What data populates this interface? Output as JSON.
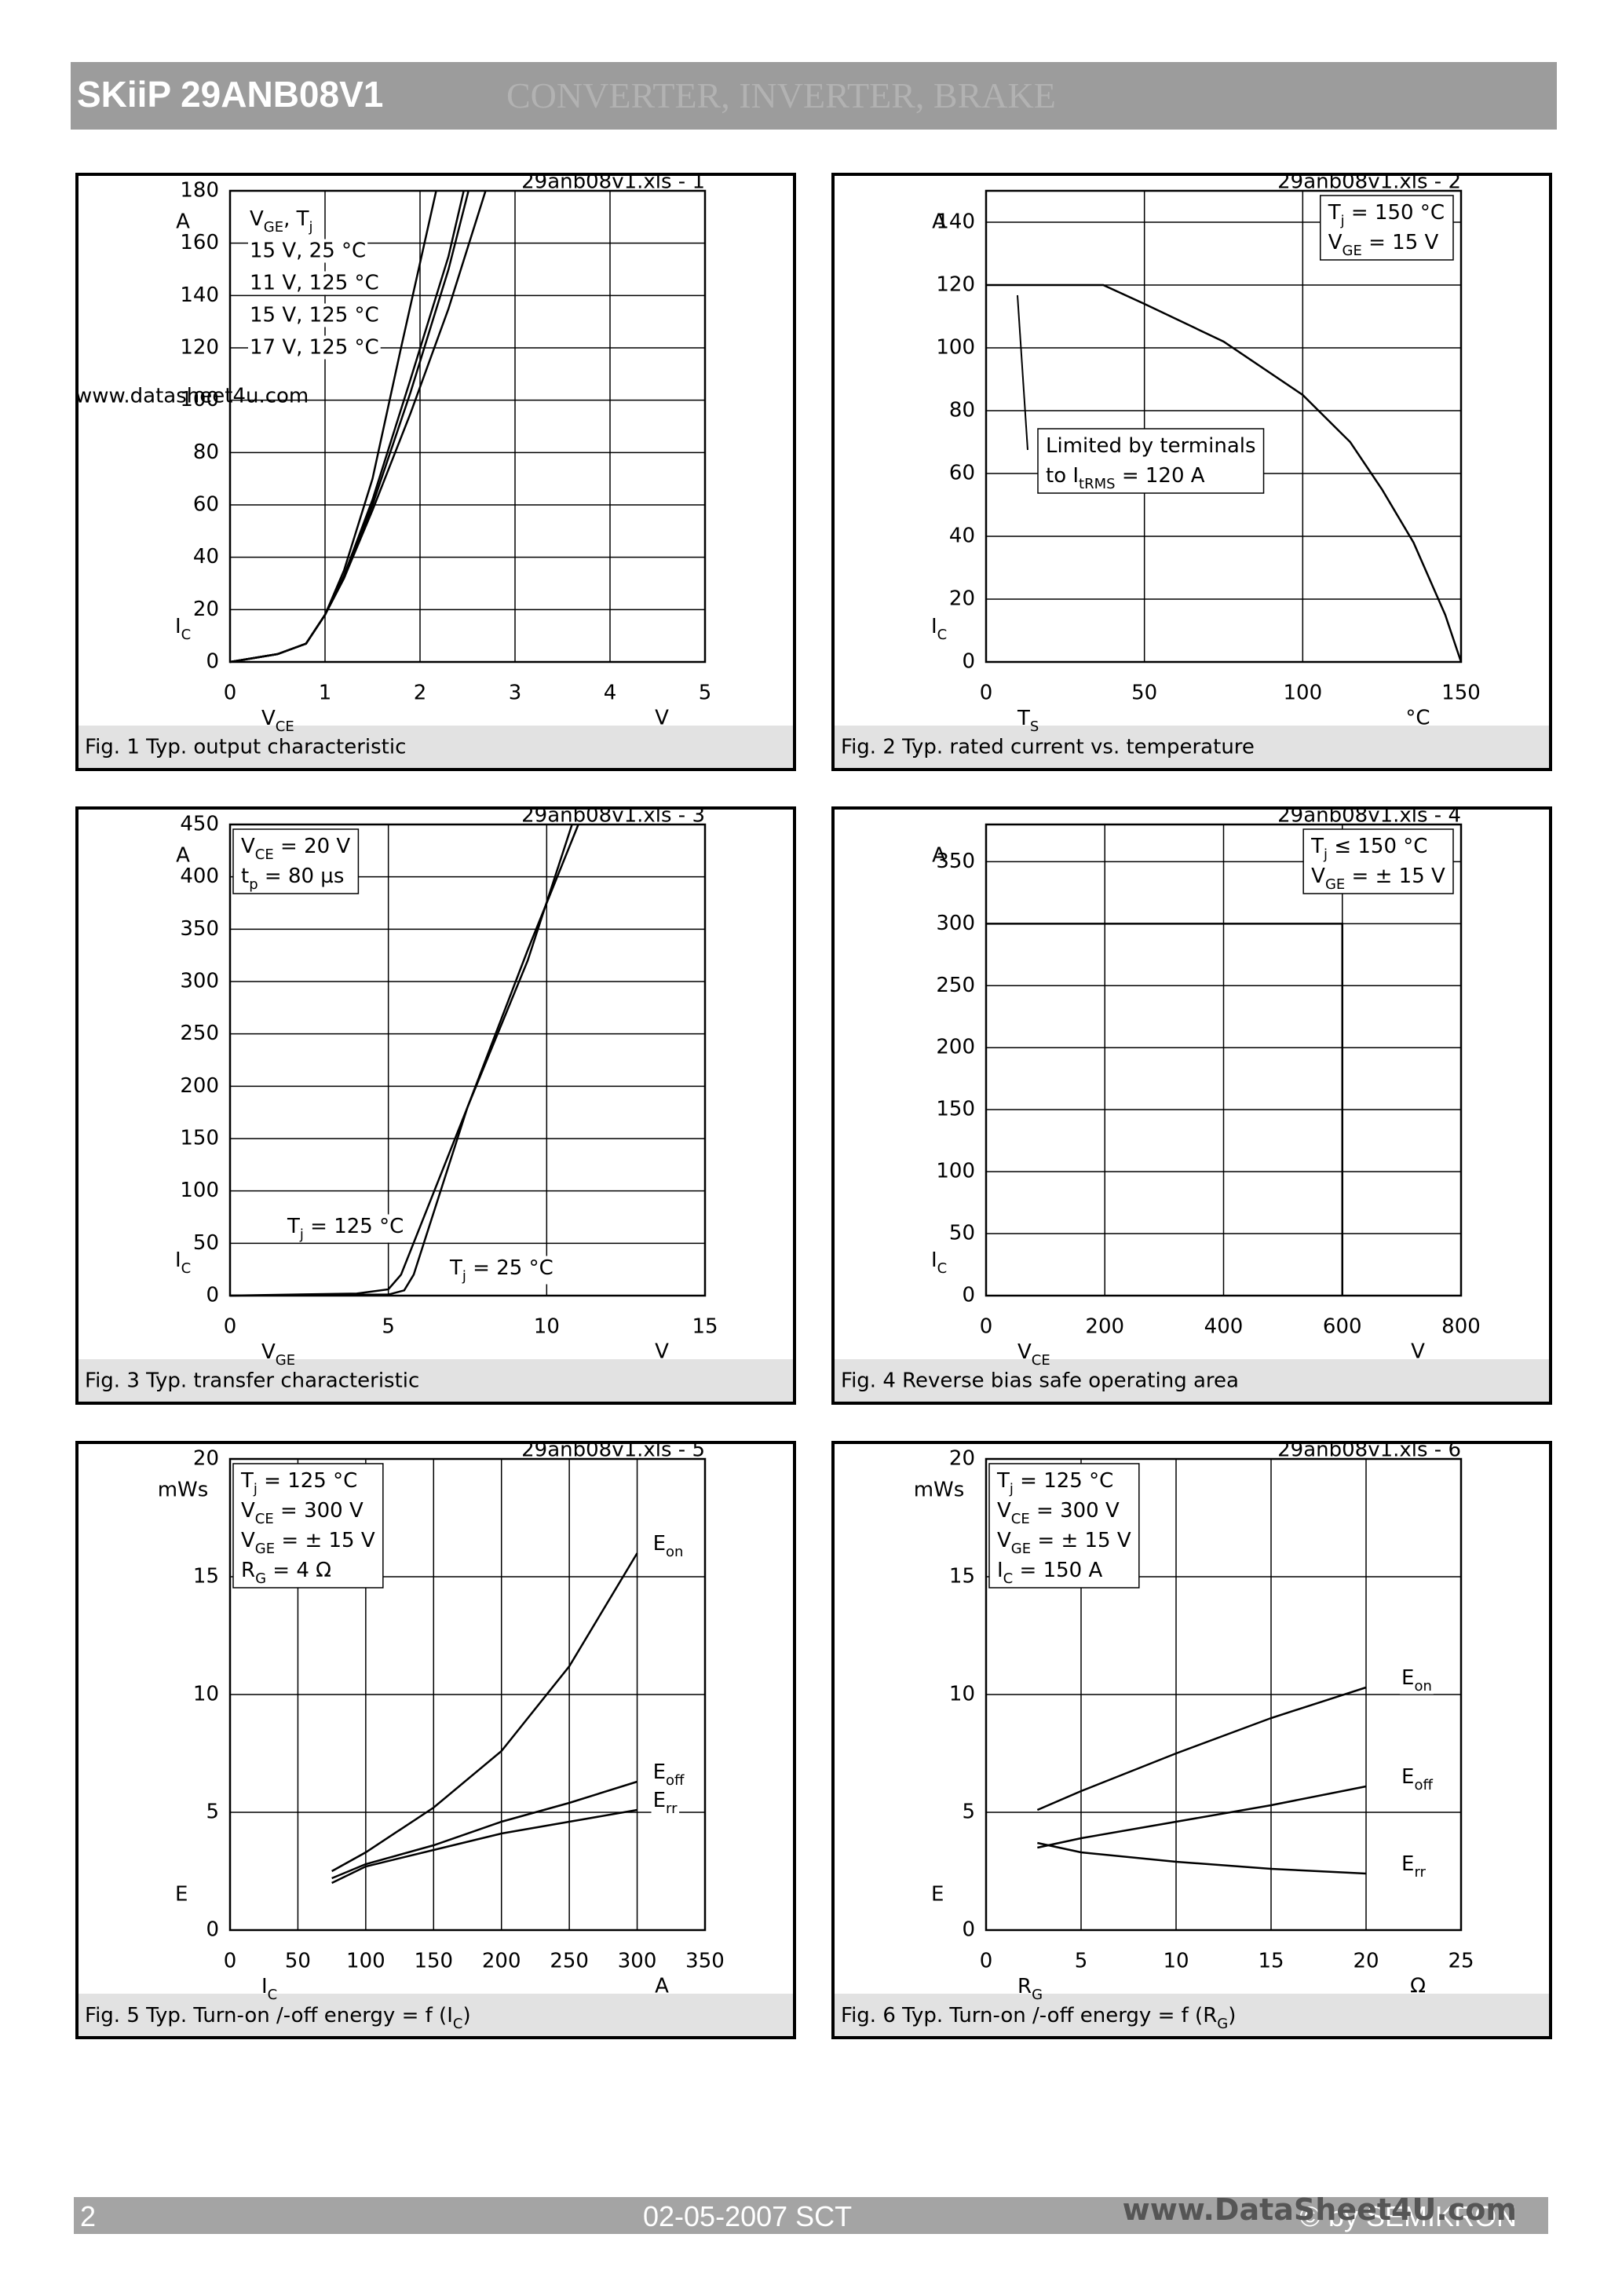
{
  "header": {
    "title": "SKiiP 29ANB08V1",
    "subtitle": "CONVERTER, INVERTER, BRAKE"
  },
  "footer": {
    "page": "2",
    "date": "02-05-2007  SCT",
    "copyright": "© by SEMIKRON",
    "watermark": "www.DataSheet4U.com"
  },
  "chart_data": [
    {
      "type": "line",
      "tag": "29anb08v1.xls - 1",
      "watermark": "www.datasheet4u.com",
      "caption": "Fig. 1 Typ. output characteristic",
      "xlabel": [
        "V",
        "CE"
      ],
      "xunit": "V",
      "ylabel": [
        "I",
        "C"
      ],
      "yunit": "A",
      "xlim": [
        0,
        5
      ],
      "xticks": [
        0,
        1,
        2,
        3,
        4,
        5
      ],
      "ylim": [
        0,
        180
      ],
      "yticks": [
        0,
        20,
        40,
        60,
        80,
        100,
        120,
        140,
        160,
        180
      ],
      "grid": true,
      "legend_title": [
        "V",
        "GE",
        ",   T",
        "j"
      ],
      "series": [
        {
          "name": "15 V,   25 °C",
          "color": "#000000",
          "x": [
            0,
            0.5,
            0.8,
            1,
            1.2,
            1.5,
            1.8,
            2.17
          ],
          "values": [
            0,
            3,
            7,
            18,
            35,
            70,
            120,
            180
          ]
        },
        {
          "name": "11 V, 125 °C",
          "color": "#000000",
          "x": [
            0,
            0.5,
            0.8,
            1,
            1.2,
            1.5,
            1.9,
            2.3,
            2.69
          ],
          "values": [
            0,
            3,
            7,
            18,
            32,
            58,
            95,
            135,
            180
          ]
        },
        {
          "name": "15 V, 125 °C",
          "color": "#000000",
          "x": [
            0,
            0.5,
            0.8,
            1,
            1.2,
            1.5,
            1.9,
            2.3,
            2.51
          ],
          "values": [
            0,
            3,
            7,
            18,
            32,
            60,
            103,
            150,
            180
          ]
        },
        {
          "name": "17 V, 125 °C",
          "color": "#000000",
          "x": [
            0,
            0.5,
            0.8,
            1,
            1.2,
            1.5,
            1.9,
            2.3,
            2.46
          ],
          "values": [
            0,
            3,
            7,
            18,
            33,
            62,
            108,
            155,
            180
          ]
        }
      ]
    },
    {
      "type": "line",
      "tag": "29anb08v1.xls - 2",
      "caption": "Fig. 2 Typ. rated current vs. temperature",
      "xlabel": [
        "T",
        "S"
      ],
      "xunit": "°C",
      "ylabel": [
        "I",
        "C"
      ],
      "yunit": "A",
      "xlim": [
        0,
        150
      ],
      "xticks": [
        0,
        50,
        100,
        150
      ],
      "ylim": [
        0,
        150
      ],
      "yticks": [
        0,
        20,
        40,
        60,
        80,
        100,
        120,
        140
      ],
      "grid": true,
      "box": [
        [
          "T",
          "j",
          "   = 150 °C"
        ],
        [
          "V",
          "GE",
          " = 15 V"
        ]
      ],
      "note": [
        [
          "Limited by terminals"
        ],
        [
          "to I",
          "tRMS",
          " = 120 A"
        ]
      ],
      "series": [
        {
          "color": "#000000",
          "x": [
            0,
            37,
            50,
            75,
            100,
            115,
            125,
            135,
            145,
            150
          ],
          "values": [
            120,
            120,
            114,
            102,
            85,
            70,
            55,
            38,
            15,
            0
          ]
        }
      ]
    },
    {
      "type": "line",
      "tag": "29anb08v1.xls - 3",
      "caption": "Fig. 3 Typ. transfer characteristic",
      "xlabel": [
        "V",
        "GE"
      ],
      "xunit": "V",
      "ylabel": [
        "I",
        "C"
      ],
      "yunit": "A",
      "xlim": [
        0,
        15
      ],
      "xticks": [
        0,
        5,
        10,
        15
      ],
      "ylim": [
        0,
        450
      ],
      "yticks": [
        0,
        50,
        100,
        150,
        200,
        250,
        300,
        350,
        400,
        450
      ],
      "grid": true,
      "box": [
        [
          "V",
          "CE",
          " = 20 V"
        ],
        [
          "t",
          "p",
          "     = 80 µs"
        ]
      ],
      "series": [
        {
          "name": [
            "T",
            "j",
            " = 125 °C"
          ],
          "color": "#000000",
          "x": [
            0,
            4,
            5,
            5.4,
            7.5,
            9.4,
            10.8
          ],
          "values": [
            0,
            2,
            6,
            20,
            180,
            320,
            450
          ]
        },
        {
          "name": [
            "T",
            "j",
            " = 25 °C"
          ],
          "color": "#000000",
          "x": [
            0,
            5,
            5.5,
            5.8,
            7.5,
            9.4,
            11.0
          ],
          "values": [
            0,
            1,
            5,
            20,
            180,
            330,
            450
          ]
        }
      ]
    },
    {
      "type": "line",
      "tag": "29anb08v1.xls - 4",
      "caption": "Fig. 4 Reverse bias safe operating area",
      "xlabel": [
        "V",
        "CE"
      ],
      "xunit": "V",
      "ylabel": [
        "I",
        "C"
      ],
      "yunit": "A",
      "xlim": [
        0,
        800
      ],
      "xticks": [
        0,
        200,
        400,
        600,
        800
      ],
      "ylim": [
        0,
        380
      ],
      "yticks": [
        0,
        50,
        100,
        150,
        200,
        250,
        300,
        350
      ],
      "grid": true,
      "box": [
        [
          "T",
          "j",
          "   ≤ 150 °C"
        ],
        [
          "V",
          "GE",
          " = ± 15 V"
        ]
      ],
      "series": [
        {
          "color": "#000000",
          "x": [
            0,
            600,
            600
          ],
          "values": [
            300,
            300,
            0
          ]
        }
      ]
    },
    {
      "type": "line",
      "tag": "29anb08v1.xls - 5",
      "caption": [
        "Fig. 5 Typ. Turn-on /-off energy = f (I",
        "C",
        ")"
      ],
      "xlabel": [
        "I",
        "C"
      ],
      "xunit": "A",
      "ylabel": "E",
      "yunit": "mWs",
      "xlim": [
        0,
        350
      ],
      "xticks": [
        0,
        50,
        100,
        150,
        200,
        250,
        300,
        350
      ],
      "ylim": [
        0,
        20
      ],
      "yticks": [
        0,
        5,
        10,
        15,
        20
      ],
      "grid": true,
      "box": [
        [
          "T",
          "j",
          "    = 125 °C"
        ],
        [
          "V",
          "CE",
          " = 300 V"
        ],
        [
          "V",
          "GE",
          " = ± 15 V"
        ],
        [
          "R",
          "G",
          "    = 4 Ω"
        ]
      ],
      "series": [
        {
          "name": [
            "E",
            "on"
          ],
          "color": "#000000",
          "x": [
            75,
            100,
            150,
            200,
            250,
            300
          ],
          "values": [
            2.5,
            3.3,
            5.2,
            7.6,
            11.2,
            16.0
          ]
        },
        {
          "name": [
            "E",
            "off"
          ],
          "color": "#000000",
          "x": [
            75,
            100,
            150,
            200,
            250,
            300
          ],
          "values": [
            2.2,
            2.8,
            3.6,
            4.6,
            5.4,
            6.3
          ]
        },
        {
          "name": [
            "E",
            "rr"
          ],
          "color": "#000000",
          "x": [
            75,
            100,
            150,
            200,
            250,
            300
          ],
          "values": [
            2.0,
            2.7,
            3.4,
            4.1,
            4.6,
            5.1
          ]
        }
      ]
    },
    {
      "type": "line",
      "tag": "29anb08v1.xls - 6",
      "caption": [
        "Fig. 6 Typ. Turn-on /-off energy = f (R",
        "G",
        ")"
      ],
      "xlabel": [
        "R",
        "G"
      ],
      "xunit": "Ω",
      "ylabel": "E",
      "yunit": "mWs",
      "xlim": [
        0,
        25
      ],
      "xticks": [
        0,
        5,
        10,
        15,
        20,
        25
      ],
      "ylim": [
        0,
        20
      ],
      "yticks": [
        0,
        5,
        10,
        15,
        20
      ],
      "grid": true,
      "box": [
        [
          "T",
          "j",
          "    = 125 °C"
        ],
        [
          "V",
          "CE",
          " = 300 V"
        ],
        [
          "V",
          "GE",
          " = ± 15 V"
        ],
        [
          "I",
          "C",
          "     = 150 A"
        ]
      ],
      "series": [
        {
          "name": [
            "E",
            "on"
          ],
          "color": "#000000",
          "x": [
            2.7,
            5,
            10,
            15,
            20
          ],
          "values": [
            5.1,
            5.9,
            7.5,
            9.0,
            10.3
          ]
        },
        {
          "name": [
            "E",
            "off"
          ],
          "color": "#000000",
          "x": [
            2.7,
            5,
            10,
            15,
            20
          ],
          "values": [
            3.5,
            3.9,
            4.6,
            5.3,
            6.1
          ]
        },
        {
          "name": [
            "E",
            "rr"
          ],
          "color": "#000000",
          "x": [
            2.7,
            5,
            10,
            15,
            20
          ],
          "values": [
            3.7,
            3.3,
            2.9,
            2.6,
            2.4
          ]
        }
      ]
    }
  ]
}
